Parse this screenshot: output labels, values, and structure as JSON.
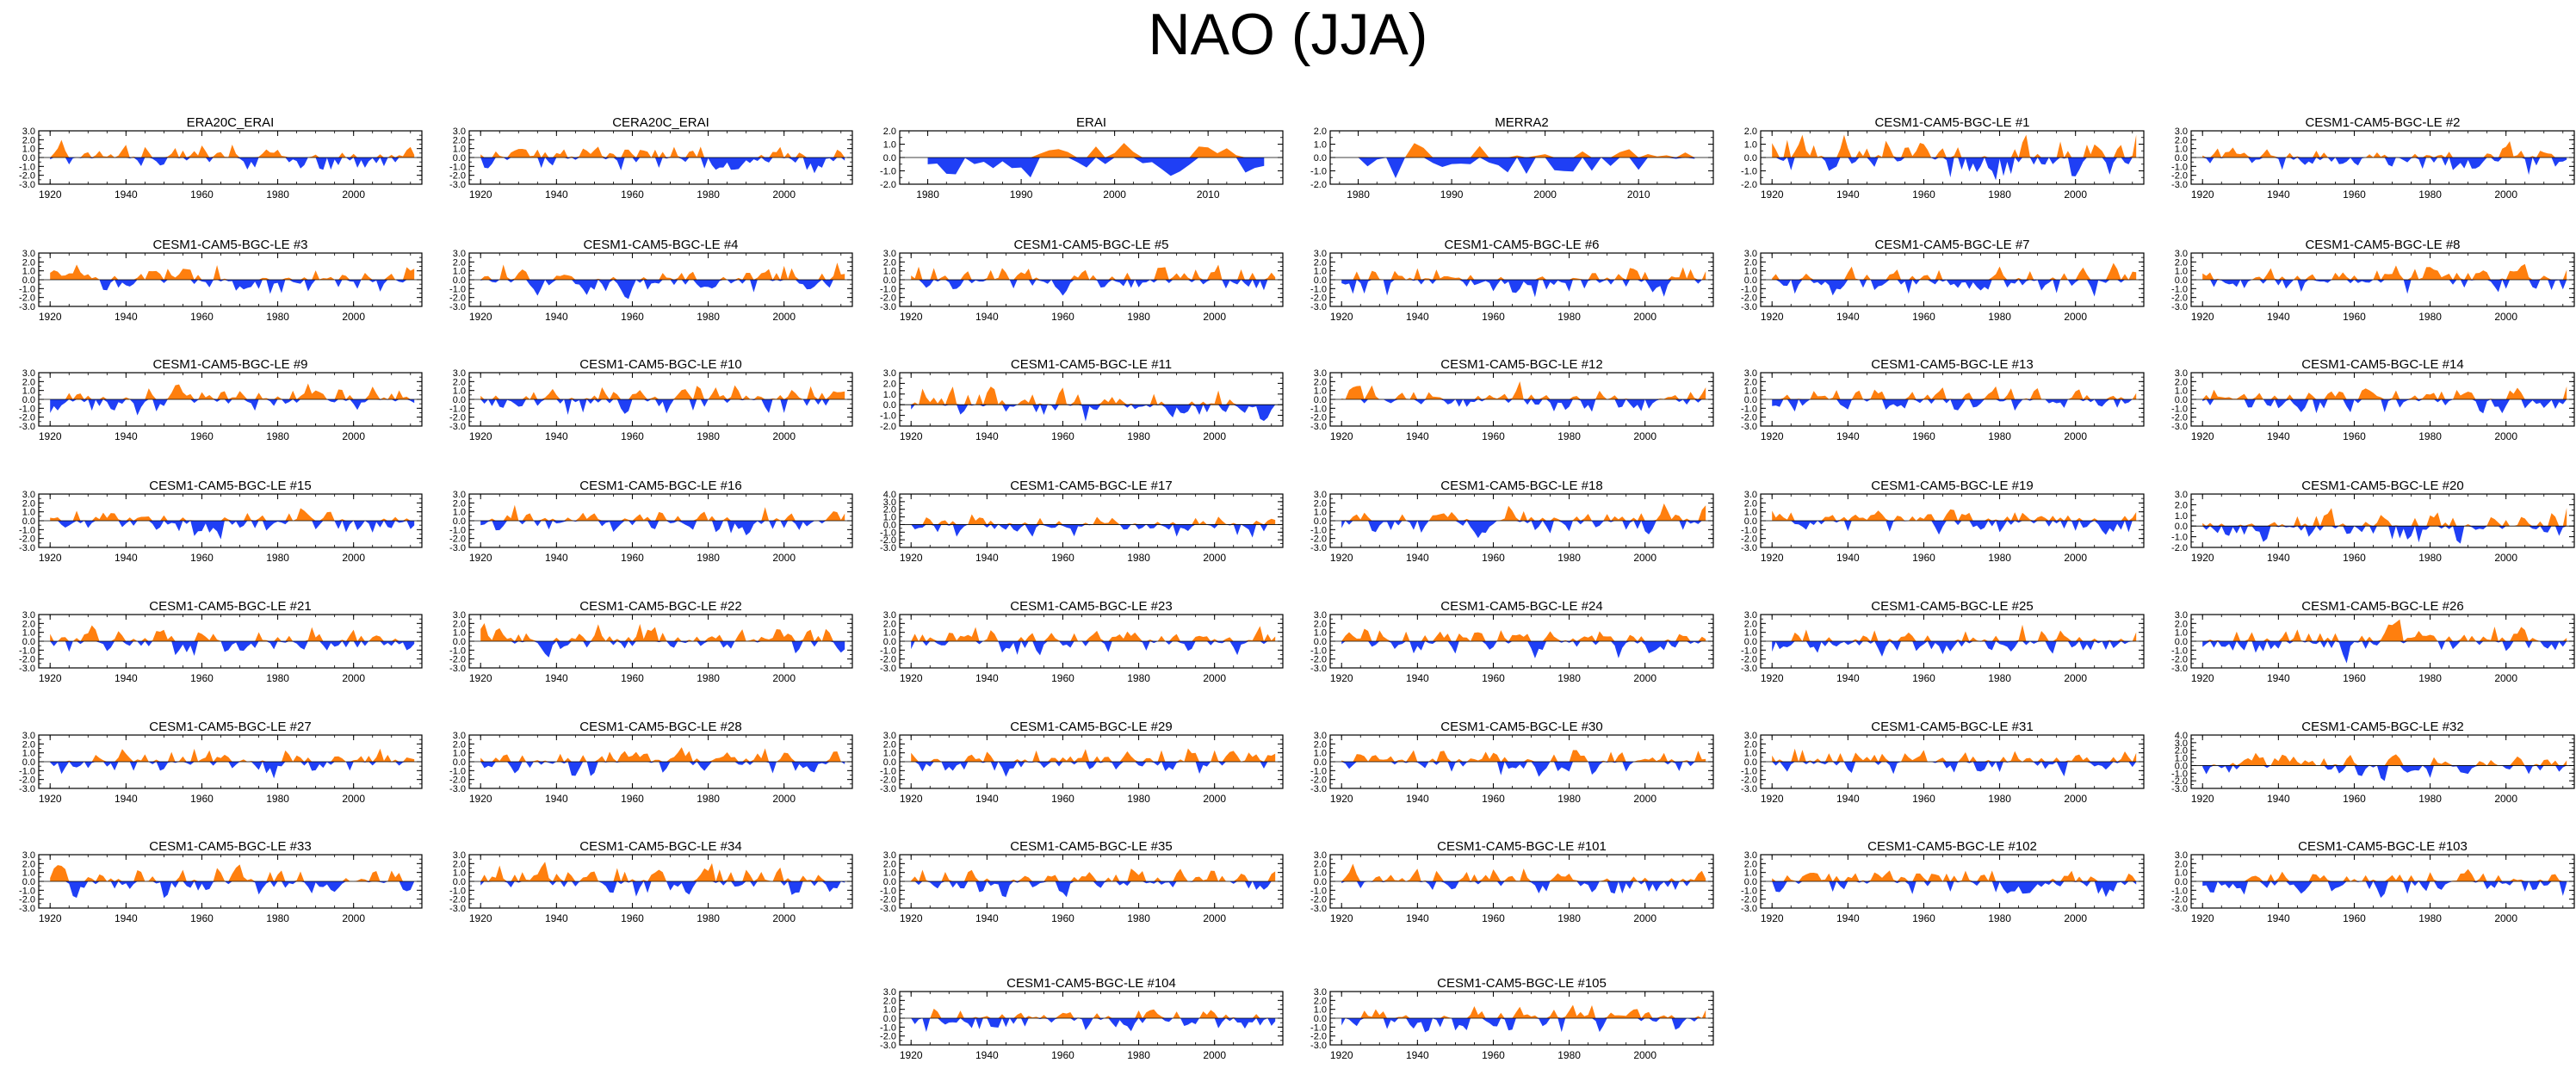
{
  "title": "NAO (JJA)",
  "colors": {
    "positive": "#ff7f0e",
    "negative": "#1f3ff5",
    "axis": "#000000"
  },
  "chart_data": [
    {
      "type": "area",
      "title": "ERA20C_ERAI",
      "xlim": [
        1917,
        2018
      ],
      "ylim": [
        -3,
        3
      ],
      "yticks": [
        3.0,
        2.0,
        1.0,
        0.0,
        -1.0,
        -2.0,
        -3.0
      ],
      "xticks": [
        1920,
        1940,
        1960,
        1980,
        2000
      ],
      "seed": 101,
      "x": [],
      "values": []
    },
    {
      "type": "area",
      "title": "CERA20C_ERAI",
      "xlim": [
        1917,
        2018
      ],
      "ylim": [
        -3,
        3
      ],
      "yticks": [
        3.0,
        2.0,
        1.0,
        0.0,
        -1.0,
        -2.0,
        -3.0
      ],
      "xticks": [
        1920,
        1940,
        1960,
        1980,
        2000
      ],
      "seed": 102,
      "x": [],
      "values": []
    },
    {
      "type": "area",
      "title": "ERAI",
      "xlim": [
        1977,
        2018
      ],
      "ylim": [
        -2,
        2
      ],
      "yticks": [
        2.0,
        1.0,
        0.0,
        -1.0,
        -2.0
      ],
      "xticks": [
        1980,
        1990,
        2000,
        2010
      ],
      "seed": 103,
      "x": [],
      "values": []
    },
    {
      "type": "area",
      "title": "MERRA2",
      "xlim": [
        1977,
        2018
      ],
      "ylim": [
        -2,
        2
      ],
      "yticks": [
        2.0,
        1.0,
        0.0,
        -1.0,
        -2.0
      ],
      "xticks": [
        1980,
        1990,
        2000,
        2010
      ],
      "seed": 104,
      "x": [],
      "values": []
    },
    {
      "type": "area",
      "title": "CESM1-CAM5-BGC-LE #1",
      "xlim": [
        1917,
        2018
      ],
      "ylim": [
        -2,
        2
      ],
      "yticks": [
        2.0,
        1.0,
        0.0,
        -1.0,
        -2.0
      ],
      "xticks": [
        1920,
        1940,
        1960,
        1980,
        2000
      ],
      "seed": 1,
      "x": [],
      "values": []
    },
    {
      "type": "area",
      "title": "CESM1-CAM5-BGC-LE #2",
      "xlim": [
        1917,
        2018
      ],
      "ylim": [
        -3,
        3
      ],
      "yticks": [
        3.0,
        2.0,
        1.0,
        0.0,
        -1.0,
        -2.0,
        -3.0
      ],
      "xticks": [
        1920,
        1940,
        1960,
        1980,
        2000
      ],
      "seed": 2,
      "x": [],
      "values": []
    },
    {
      "type": "area",
      "title": "CESM1-CAM5-BGC-LE #3",
      "xlim": [
        1917,
        2018
      ],
      "ylim": [
        -3,
        3
      ],
      "yticks": [
        3.0,
        2.0,
        1.0,
        0.0,
        -1.0,
        -2.0,
        -3.0
      ],
      "xticks": [
        1920,
        1940,
        1960,
        1980,
        2000
      ],
      "seed": 3,
      "x": [],
      "values": []
    },
    {
      "type": "area",
      "title": "CESM1-CAM5-BGC-LE #4",
      "xlim": [
        1917,
        2018
      ],
      "ylim": [
        -3,
        3
      ],
      "yticks": [
        3.0,
        2.0,
        1.0,
        0.0,
        -1.0,
        -2.0,
        -3.0
      ],
      "xticks": [
        1920,
        1940,
        1960,
        1980,
        2000
      ],
      "seed": 4,
      "x": [],
      "values": []
    },
    {
      "type": "area",
      "title": "CESM1-CAM5-BGC-LE #5",
      "xlim": [
        1917,
        2018
      ],
      "ylim": [
        -3,
        3
      ],
      "yticks": [
        3.0,
        2.0,
        1.0,
        0.0,
        -1.0,
        -2.0,
        -3.0
      ],
      "xticks": [
        1920,
        1940,
        1960,
        1980,
        2000
      ],
      "seed": 5,
      "x": [],
      "values": []
    },
    {
      "type": "area",
      "title": "CESM1-CAM5-BGC-LE #6",
      "xlim": [
        1917,
        2018
      ],
      "ylim": [
        -3,
        3
      ],
      "yticks": [
        3.0,
        2.0,
        1.0,
        0.0,
        -1.0,
        -2.0,
        -3.0
      ],
      "xticks": [
        1920,
        1940,
        1960,
        1980,
        2000
      ],
      "seed": 6,
      "x": [],
      "values": []
    },
    {
      "type": "area",
      "title": "CESM1-CAM5-BGC-LE #7",
      "xlim": [
        1917,
        2018
      ],
      "ylim": [
        -3,
        3
      ],
      "yticks": [
        3.0,
        2.0,
        1.0,
        0.0,
        -1.0,
        -2.0,
        -3.0
      ],
      "xticks": [
        1920,
        1940,
        1960,
        1980,
        2000
      ],
      "seed": 7,
      "x": [],
      "values": []
    },
    {
      "type": "area",
      "title": "CESM1-CAM5-BGC-LE #8",
      "xlim": [
        1917,
        2018
      ],
      "ylim": [
        -3,
        3
      ],
      "yticks": [
        3.0,
        2.0,
        1.0,
        0.0,
        -1.0,
        -2.0,
        -3.0
      ],
      "xticks": [
        1920,
        1940,
        1960,
        1980,
        2000
      ],
      "seed": 8,
      "x": [],
      "values": []
    },
    {
      "type": "area",
      "title": "CESM1-CAM5-BGC-LE #9",
      "xlim": [
        1917,
        2018
      ],
      "ylim": [
        -3,
        3
      ],
      "yticks": [
        3.0,
        2.0,
        1.0,
        0.0,
        -1.0,
        -2.0,
        -3.0
      ],
      "xticks": [
        1920,
        1940,
        1960,
        1980,
        2000
      ],
      "seed": 9,
      "x": [],
      "values": []
    },
    {
      "type": "area",
      "title": "CESM1-CAM5-BGC-LE #10",
      "xlim": [
        1917,
        2018
      ],
      "ylim": [
        -3,
        3
      ],
      "yticks": [
        3.0,
        2.0,
        1.0,
        0.0,
        -1.0,
        -2.0,
        -3.0
      ],
      "xticks": [
        1920,
        1940,
        1960,
        1980,
        2000
      ],
      "seed": 10,
      "x": [],
      "values": []
    },
    {
      "type": "area",
      "title": "CESM1-CAM5-BGC-LE #11",
      "xlim": [
        1917,
        2018
      ],
      "ylim": [
        -2,
        3
      ],
      "yticks": [
        3.0,
        2.0,
        1.0,
        0.0,
        -1.0,
        -2.0
      ],
      "xticks": [
        1920,
        1940,
        1960,
        1980,
        2000
      ],
      "seed": 11,
      "x": [],
      "values": []
    },
    {
      "type": "area",
      "title": "CESM1-CAM5-BGC-LE #12",
      "xlim": [
        1917,
        2018
      ],
      "ylim": [
        -3,
        3
      ],
      "yticks": [
        3.0,
        2.0,
        1.0,
        0.0,
        -1.0,
        -2.0,
        -3.0
      ],
      "xticks": [
        1920,
        1940,
        1960,
        1980,
        2000
      ],
      "seed": 12,
      "x": [],
      "values": []
    },
    {
      "type": "area",
      "title": "CESM1-CAM5-BGC-LE #13",
      "xlim": [
        1917,
        2018
      ],
      "ylim": [
        -3,
        3
      ],
      "yticks": [
        3.0,
        2.0,
        1.0,
        0.0,
        -1.0,
        -2.0,
        -3.0
      ],
      "xticks": [
        1920,
        1940,
        1960,
        1980,
        2000
      ],
      "seed": 13,
      "x": [],
      "values": []
    },
    {
      "type": "area",
      "title": "CESM1-CAM5-BGC-LE #14",
      "xlim": [
        1917,
        2018
      ],
      "ylim": [
        -3,
        3
      ],
      "yticks": [
        3.0,
        2.0,
        1.0,
        0.0,
        -1.0,
        -2.0,
        -3.0
      ],
      "xticks": [
        1920,
        1940,
        1960,
        1980,
        2000
      ],
      "seed": 14,
      "x": [],
      "values": []
    },
    {
      "type": "area",
      "title": "CESM1-CAM5-BGC-LE #15",
      "xlim": [
        1917,
        2018
      ],
      "ylim": [
        -3,
        3
      ],
      "yticks": [
        3.0,
        2.0,
        1.0,
        0.0,
        -1.0,
        -2.0,
        -3.0
      ],
      "xticks": [
        1920,
        1940,
        1960,
        1980,
        2000
      ],
      "seed": 15,
      "x": [],
      "values": []
    },
    {
      "type": "area",
      "title": "CESM1-CAM5-BGC-LE #16",
      "xlim": [
        1917,
        2018
      ],
      "ylim": [
        -3,
        3
      ],
      "yticks": [
        3.0,
        2.0,
        1.0,
        0.0,
        -1.0,
        -2.0,
        -3.0
      ],
      "xticks": [
        1920,
        1940,
        1960,
        1980,
        2000
      ],
      "seed": 16,
      "x": [],
      "values": []
    },
    {
      "type": "area",
      "title": "CESM1-CAM5-BGC-LE #17",
      "xlim": [
        1917,
        2018
      ],
      "ylim": [
        -3,
        4
      ],
      "yticks": [
        4.0,
        3.0,
        2.0,
        1.0,
        0.0,
        -1.0,
        -2.0,
        -3.0
      ],
      "xticks": [
        1920,
        1940,
        1960,
        1980,
        2000
      ],
      "seed": 17,
      "x": [],
      "values": []
    },
    {
      "type": "area",
      "title": "CESM1-CAM5-BGC-LE #18",
      "xlim": [
        1917,
        2018
      ],
      "ylim": [
        -3,
        3
      ],
      "yticks": [
        3.0,
        2.0,
        1.0,
        0.0,
        -1.0,
        -2.0,
        -3.0
      ],
      "xticks": [
        1920,
        1940,
        1960,
        1980,
        2000
      ],
      "seed": 18,
      "x": [],
      "values": []
    },
    {
      "type": "area",
      "title": "CESM1-CAM5-BGC-LE #19",
      "xlim": [
        1917,
        2018
      ],
      "ylim": [
        -3,
        3
      ],
      "yticks": [
        3.0,
        2.0,
        1.0,
        0.0,
        -1.0,
        -2.0,
        -3.0
      ],
      "xticks": [
        1920,
        1940,
        1960,
        1980,
        2000
      ],
      "seed": 19,
      "x": [],
      "values": []
    },
    {
      "type": "area",
      "title": "CESM1-CAM5-BGC-LE #20",
      "xlim": [
        1917,
        2018
      ],
      "ylim": [
        -2,
        3
      ],
      "yticks": [
        3.0,
        2.0,
        1.0,
        0.0,
        -1.0,
        -2.0
      ],
      "xticks": [
        1920,
        1940,
        1960,
        1980,
        2000
      ],
      "seed": 20,
      "x": [],
      "values": []
    },
    {
      "type": "area",
      "title": "CESM1-CAM5-BGC-LE #21",
      "xlim": [
        1917,
        2018
      ],
      "ylim": [
        -3,
        3
      ],
      "yticks": [
        3.0,
        2.0,
        1.0,
        0.0,
        -1.0,
        -2.0,
        -3.0
      ],
      "xticks": [
        1920,
        1940,
        1960,
        1980,
        2000
      ],
      "seed": 21,
      "x": [],
      "values": []
    },
    {
      "type": "area",
      "title": "CESM1-CAM5-BGC-LE #22",
      "xlim": [
        1917,
        2018
      ],
      "ylim": [
        -3,
        3
      ],
      "yticks": [
        3.0,
        2.0,
        1.0,
        0.0,
        -1.0,
        -2.0,
        -3.0
      ],
      "xticks": [
        1920,
        1940,
        1960,
        1980,
        2000
      ],
      "seed": 22,
      "x": [],
      "values": []
    },
    {
      "type": "area",
      "title": "CESM1-CAM5-BGC-LE #23",
      "xlim": [
        1917,
        2018
      ],
      "ylim": [
        -3,
        3
      ],
      "yticks": [
        3.0,
        2.0,
        1.0,
        0.0,
        -1.0,
        -2.0,
        -3.0
      ],
      "xticks": [
        1920,
        1940,
        1960,
        1980,
        2000
      ],
      "seed": 23,
      "x": [],
      "values": []
    },
    {
      "type": "area",
      "title": "CESM1-CAM5-BGC-LE #24",
      "xlim": [
        1917,
        2018
      ],
      "ylim": [
        -3,
        3
      ],
      "yticks": [
        3.0,
        2.0,
        1.0,
        0.0,
        -1.0,
        -2.0,
        -3.0
      ],
      "xticks": [
        1920,
        1940,
        1960,
        1980,
        2000
      ],
      "seed": 24,
      "x": [],
      "values": []
    },
    {
      "type": "area",
      "title": "CESM1-CAM5-BGC-LE #25",
      "xlim": [
        1917,
        2018
      ],
      "ylim": [
        -3,
        3
      ],
      "yticks": [
        3.0,
        2.0,
        1.0,
        0.0,
        -1.0,
        -2.0,
        -3.0
      ],
      "xticks": [
        1920,
        1940,
        1960,
        1980,
        2000
      ],
      "seed": 25,
      "x": [],
      "values": []
    },
    {
      "type": "area",
      "title": "CESM1-CAM5-BGC-LE #26",
      "xlim": [
        1917,
        2018
      ],
      "ylim": [
        -3,
        3
      ],
      "yticks": [
        3.0,
        2.0,
        1.0,
        0.0,
        -1.0,
        -2.0,
        -3.0
      ],
      "xticks": [
        1920,
        1940,
        1960,
        1980,
        2000
      ],
      "seed": 26,
      "x": [],
      "values": []
    },
    {
      "type": "area",
      "title": "CESM1-CAM5-BGC-LE #27",
      "xlim": [
        1917,
        2018
      ],
      "ylim": [
        -3,
        3
      ],
      "yticks": [
        3.0,
        2.0,
        1.0,
        0.0,
        -1.0,
        -2.0,
        -3.0
      ],
      "xticks": [
        1920,
        1940,
        1960,
        1980,
        2000
      ],
      "seed": 27,
      "x": [],
      "values": []
    },
    {
      "type": "area",
      "title": "CESM1-CAM5-BGC-LE #28",
      "xlim": [
        1917,
        2018
      ],
      "ylim": [
        -3,
        3
      ],
      "yticks": [
        3.0,
        2.0,
        1.0,
        0.0,
        -1.0,
        -2.0,
        -3.0
      ],
      "xticks": [
        1920,
        1940,
        1960,
        1980,
        2000
      ],
      "seed": 28,
      "x": [],
      "values": []
    },
    {
      "type": "area",
      "title": "CESM1-CAM5-BGC-LE #29",
      "xlim": [
        1917,
        2018
      ],
      "ylim": [
        -3,
        3
      ],
      "yticks": [
        3.0,
        2.0,
        1.0,
        0.0,
        -1.0,
        -2.0,
        -3.0
      ],
      "xticks": [
        1920,
        1940,
        1960,
        1980,
        2000
      ],
      "seed": 29,
      "x": [],
      "values": []
    },
    {
      "type": "area",
      "title": "CESM1-CAM5-BGC-LE #30",
      "xlim": [
        1917,
        2018
      ],
      "ylim": [
        -3,
        3
      ],
      "yticks": [
        3.0,
        2.0,
        1.0,
        0.0,
        -1.0,
        -2.0,
        -3.0
      ],
      "xticks": [
        1920,
        1940,
        1960,
        1980,
        2000
      ],
      "seed": 30,
      "x": [],
      "values": []
    },
    {
      "type": "area",
      "title": "CESM1-CAM5-BGC-LE #31",
      "xlim": [
        1917,
        2018
      ],
      "ylim": [
        -3,
        3
      ],
      "yticks": [
        3.0,
        2.0,
        1.0,
        0.0,
        -1.0,
        -2.0,
        -3.0
      ],
      "xticks": [
        1920,
        1940,
        1960,
        1980,
        2000
      ],
      "seed": 31,
      "x": [],
      "values": []
    },
    {
      "type": "area",
      "title": "CESM1-CAM5-BGC-LE #32",
      "xlim": [
        1917,
        2018
      ],
      "ylim": [
        -3,
        4
      ],
      "yticks": [
        4.0,
        3.0,
        2.0,
        1.0,
        0.0,
        -1.0,
        -2.0,
        -3.0
      ],
      "xticks": [
        1920,
        1940,
        1960,
        1980,
        2000
      ],
      "seed": 32,
      "x": [],
      "values": []
    },
    {
      "type": "area",
      "title": "CESM1-CAM5-BGC-LE #33",
      "xlim": [
        1917,
        2018
      ],
      "ylim": [
        -3,
        3
      ],
      "yticks": [
        3.0,
        2.0,
        1.0,
        0.0,
        -1.0,
        -2.0,
        -3.0
      ],
      "xticks": [
        1920,
        1940,
        1960,
        1980,
        2000
      ],
      "seed": 33,
      "x": [],
      "values": []
    },
    {
      "type": "area",
      "title": "CESM1-CAM5-BGC-LE #34",
      "xlim": [
        1917,
        2018
      ],
      "ylim": [
        -3,
        3
      ],
      "yticks": [
        3.0,
        2.0,
        1.0,
        0.0,
        -1.0,
        -2.0,
        -3.0
      ],
      "xticks": [
        1920,
        1940,
        1960,
        1980,
        2000
      ],
      "seed": 34,
      "x": [],
      "values": []
    },
    {
      "type": "area",
      "title": "CESM1-CAM5-BGC-LE #35",
      "xlim": [
        1917,
        2018
      ],
      "ylim": [
        -3,
        3
      ],
      "yticks": [
        3.0,
        2.0,
        1.0,
        0.0,
        -1.0,
        -2.0,
        -3.0
      ],
      "xticks": [
        1920,
        1940,
        1960,
        1980,
        2000
      ],
      "seed": 35,
      "x": [],
      "values": []
    },
    {
      "type": "area",
      "title": "CESM1-CAM5-BGC-LE #101",
      "xlim": [
        1917,
        2018
      ],
      "ylim": [
        -3,
        3
      ],
      "yticks": [
        3.0,
        2.0,
        1.0,
        0.0,
        -1.0,
        -2.0,
        -3.0
      ],
      "xticks": [
        1920,
        1940,
        1960,
        1980,
        2000
      ],
      "seed": 101,
      "x": [],
      "values": []
    },
    {
      "type": "area",
      "title": "CESM1-CAM5-BGC-LE #102",
      "xlim": [
        1917,
        2018
      ],
      "ylim": [
        -3,
        3
      ],
      "yticks": [
        3.0,
        2.0,
        1.0,
        0.0,
        -1.0,
        -2.0,
        -3.0
      ],
      "xticks": [
        1920,
        1940,
        1960,
        1980,
        2000
      ],
      "seed": 102,
      "x": [],
      "values": []
    },
    {
      "type": "area",
      "title": "CESM1-CAM5-BGC-LE #103",
      "xlim": [
        1917,
        2018
      ],
      "ylim": [
        -3,
        3
      ],
      "yticks": [
        3.0,
        2.0,
        1.0,
        0.0,
        -1.0,
        -2.0,
        -3.0
      ],
      "xticks": [
        1920,
        1940,
        1960,
        1980,
        2000
      ],
      "seed": 103,
      "x": [],
      "values": []
    },
    {
      "type": "area",
      "title": "CESM1-CAM5-BGC-LE #104",
      "xlim": [
        1917,
        2018
      ],
      "ylim": [
        -3,
        3
      ],
      "yticks": [
        3.0,
        2.0,
        1.0,
        0.0,
        -1.0,
        -2.0,
        -3.0
      ],
      "xticks": [
        1920,
        1940,
        1960,
        1980,
        2000
      ],
      "seed": 104,
      "x": [],
      "values": []
    },
    {
      "type": "area",
      "title": "CESM1-CAM5-BGC-LE #105",
      "xlim": [
        1917,
        2018
      ],
      "ylim": [
        -3,
        3
      ],
      "yticks": [
        3.0,
        2.0,
        1.0,
        0.0,
        -1.0,
        -2.0,
        -3.0
      ],
      "xticks": [
        1920,
        1940,
        1960,
        1980,
        2000
      ],
      "seed": 105,
      "x": [],
      "values": []
    }
  ]
}
